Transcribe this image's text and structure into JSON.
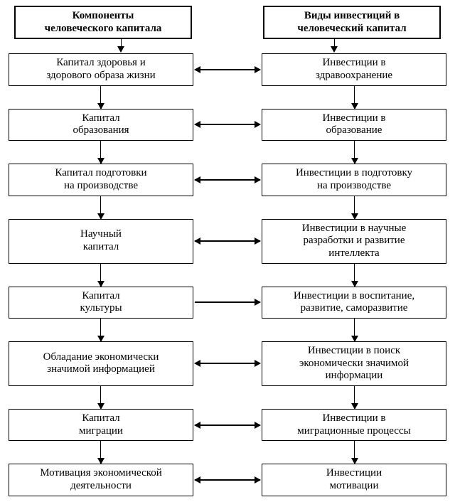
{
  "type": "flowchart",
  "background_color": "#ffffff",
  "border_color": "#000000",
  "font_family": "Times New Roman",
  "font_size_pt": 12,
  "header_font_weight": "bold",
  "columns": {
    "left_header_line1": "Компоненты",
    "left_header_line2": "человеческого капитала",
    "right_header_line1": "Виды инвестиций в",
    "right_header_line2": "человеческий капитал"
  },
  "rows": [
    {
      "left_line1": "Капитал здоровья и",
      "left_line2": "здорового образа жизни",
      "right_line1": "Инвестиции в",
      "right_line2": "здравоохранение",
      "arrow": "both"
    },
    {
      "left_line1": "Капитал",
      "left_line2": "образования",
      "right_line1": "Инвестиции в",
      "right_line2": "образование",
      "arrow": "both"
    },
    {
      "left_line1": "Капитал подготовки",
      "left_line2": "на производстве",
      "right_line1": "Инвестиции в подготовку",
      "right_line2": "на производстве",
      "arrow": "both"
    },
    {
      "left_line1": "Научный",
      "left_line2": "капитал",
      "right_line1": "Инвестиции в научные",
      "right_line2": "разработки и развитие",
      "right_line3": "интеллекта",
      "arrow": "both"
    },
    {
      "left_line1": "Капитал",
      "left_line2": "культуры",
      "right_line1": "Инвестиции в воспитание,",
      "right_line2": "развитие, саморазвитие",
      "arrow": "right"
    },
    {
      "left_line1": "Обладание экономически",
      "left_line2": "значимой информацией",
      "right_line1": "Инвестиции в поиск",
      "right_line2": "экономически значимой",
      "right_line3": "информации",
      "arrow": "both"
    },
    {
      "left_line1": "Капитал",
      "left_line2": "миграции",
      "right_line1": "Инвестиции в",
      "right_line2": "миграционные процессы",
      "arrow": "both"
    },
    {
      "left_line1": "Мотивация экономической",
      "left_line2": "деятельности",
      "right_line1": "Инвестиции",
      "right_line2": "мотивации",
      "arrow": "both"
    }
  ]
}
